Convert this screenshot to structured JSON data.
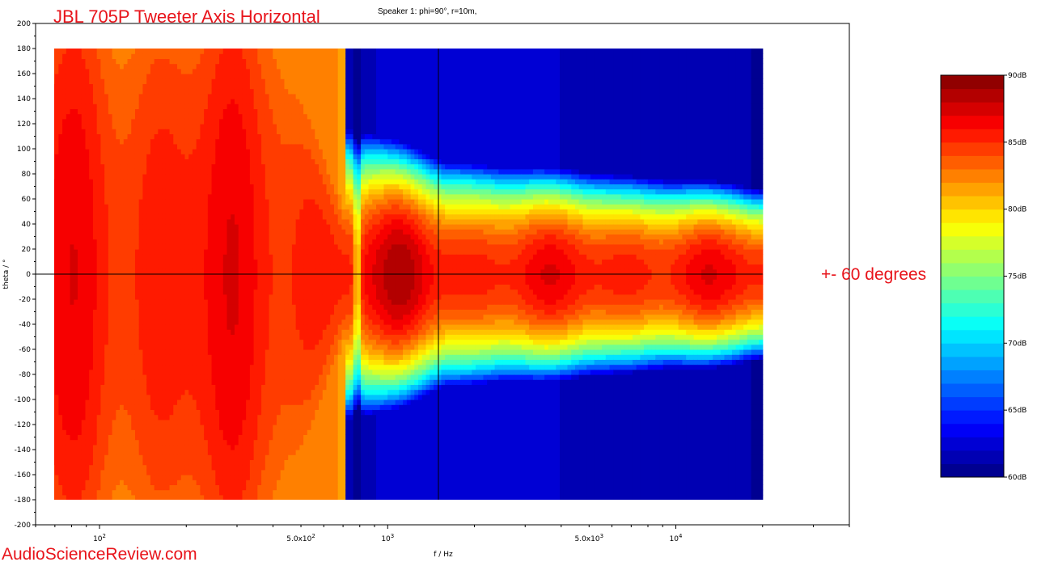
{
  "chart_data": {
    "type": "heatmap",
    "title": "JBL 705P Tweeter Axis Horizontal",
    "subtitle": "Speaker 1: phi=90°, r=10m,",
    "xlabel": "f / Hz",
    "ylabel": "theta / °",
    "x_scale": "log",
    "xlim": [
      60,
      40000
    ],
    "ylim": [
      -200,
      200
    ],
    "x_tick_labels": [
      {
        "value": 100,
        "label": "10",
        "exp": "2"
      },
      {
        "value": 500,
        "label": "5.0x10",
        "exp": "2"
      },
      {
        "value": 1000,
        "label": "10",
        "exp": "3"
      },
      {
        "value": 5000,
        "label": "5.0x10",
        "exp": "3"
      },
      {
        "value": 10000,
        "label": "10",
        "exp": "4"
      }
    ],
    "y_ticks": [
      -200,
      -180,
      -160,
      -140,
      -120,
      -100,
      -80,
      -60,
      -40,
      -20,
      0,
      20,
      40,
      60,
      80,
      100,
      120,
      140,
      160,
      180,
      200
    ],
    "data_range": {
      "f": [
        60,
        20000
      ],
      "theta": [
        -180,
        180
      ]
    },
    "crosshair": {
      "f": 1500,
      "theta": 0
    },
    "colorbar": {
      "min": 60,
      "max": 90,
      "unit": "dB",
      "ticks": [
        {
          "value": 90,
          "label": "90dB"
        },
        {
          "value": 85,
          "label": "85dB"
        },
        {
          "value": 80,
          "label": "80dB"
        },
        {
          "value": 75,
          "label": "75dB"
        },
        {
          "value": 70,
          "label": "70dB"
        },
        {
          "value": 65,
          "label": "65dB"
        },
        {
          "value": 60,
          "label": "60dB"
        }
      ],
      "colormap": "jet",
      "levels": 30
    },
    "annotation": "+- 60 degrees"
  },
  "watermark": "AudioScienceReview.com",
  "colors": {
    "annotation": "#e8141b",
    "plot_frame": "#000000"
  }
}
